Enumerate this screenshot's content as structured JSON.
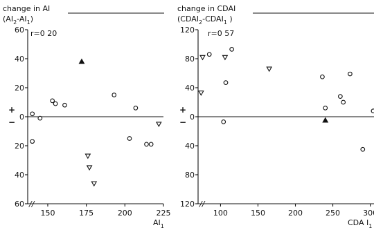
{
  "chart_data": [
    {
      "type": "scatter",
      "title_line1": "change in AI",
      "title_line2": "(AI",
      "title_sub_a": "2",
      "title_mid": "-AI",
      "title_sub_b": "1",
      "title_end": ")",
      "stat": "r=0 20",
      "xlabel": "AI",
      "xlabel_sub": "1",
      "xlim": [
        137,
        225
      ],
      "ylim": [
        -60,
        60
      ],
      "xticks": [
        "150",
        "175",
        "200",
        "225"
      ],
      "xtick_values": [
        150,
        175,
        200,
        225
      ],
      "yticks": [
        "60",
        "40",
        "20",
        "0",
        "20",
        "40",
        "60"
      ],
      "ytick_values": [
        60,
        40,
        20,
        0,
        -20,
        -40,
        -60
      ],
      "positive_sign": "+",
      "negative_sign": "−",
      "axis_break": "//",
      "series": [
        {
          "marker": "circle-open",
          "points": [
            [
              140,
              2
            ],
            [
              140,
              -17
            ],
            [
              145,
              -1
            ],
            [
              153,
              11
            ],
            [
              155,
              9
            ],
            [
              161,
              8
            ],
            [
              193,
              15
            ],
            [
              203,
              -15
            ],
            [
              207,
              6
            ],
            [
              214,
              -19
            ],
            [
              217,
              -19
            ]
          ]
        },
        {
          "marker": "triangle-down-open",
          "points": [
            [
              176,
              -27
            ],
            [
              177,
              -35
            ],
            [
              180,
              -46
            ],
            [
              222,
              -5
            ]
          ]
        },
        {
          "marker": "triangle-up-filled",
          "points": [
            [
              172,
              38
            ]
          ]
        }
      ]
    },
    {
      "type": "scatter",
      "title_line1": "change in CDAI",
      "title_line2": "(CDAI",
      "title_sub_a": "2",
      "title_mid": "-CDAI",
      "title_sub_b": "1",
      "title_end": " )",
      "stat": "r=0 57",
      "xlabel": "CDA I",
      "xlabel_sub": "1",
      "xlim": [
        70,
        305
      ],
      "ylim": [
        -120,
        120
      ],
      "xticks": [
        "100",
        "150",
        "200",
        "250",
        "300"
      ],
      "xtick_values": [
        100,
        150,
        200,
        250,
        300
      ],
      "yticks": [
        "120",
        "80",
        "40",
        "0",
        "40",
        "80",
        "120"
      ],
      "ytick_values": [
        120,
        80,
        40,
        0,
        -40,
        -80,
        -120
      ],
      "positive_sign": "+",
      "negative_sign": "−",
      "axis_break": "//",
      "series": [
        {
          "marker": "circle-open",
          "points": [
            [
              85,
              86
            ],
            [
              104,
              -7
            ],
            [
              107,
              47
            ],
            [
              115,
              93
            ],
            [
              236,
              55
            ],
            [
              240,
              12
            ],
            [
              260,
              28
            ],
            [
              264,
              20
            ],
            [
              273,
              59
            ],
            [
              290,
              -45
            ],
            [
              304,
              8
            ]
          ]
        },
        {
          "marker": "triangle-down-open",
          "points": [
            [
              74,
              33
            ],
            [
              76,
              82
            ],
            [
              106,
              82
            ],
            [
              165,
              66
            ]
          ]
        },
        {
          "marker": "triangle-up-filled",
          "points": [
            [
              240,
              -5
            ]
          ]
        }
      ]
    }
  ]
}
